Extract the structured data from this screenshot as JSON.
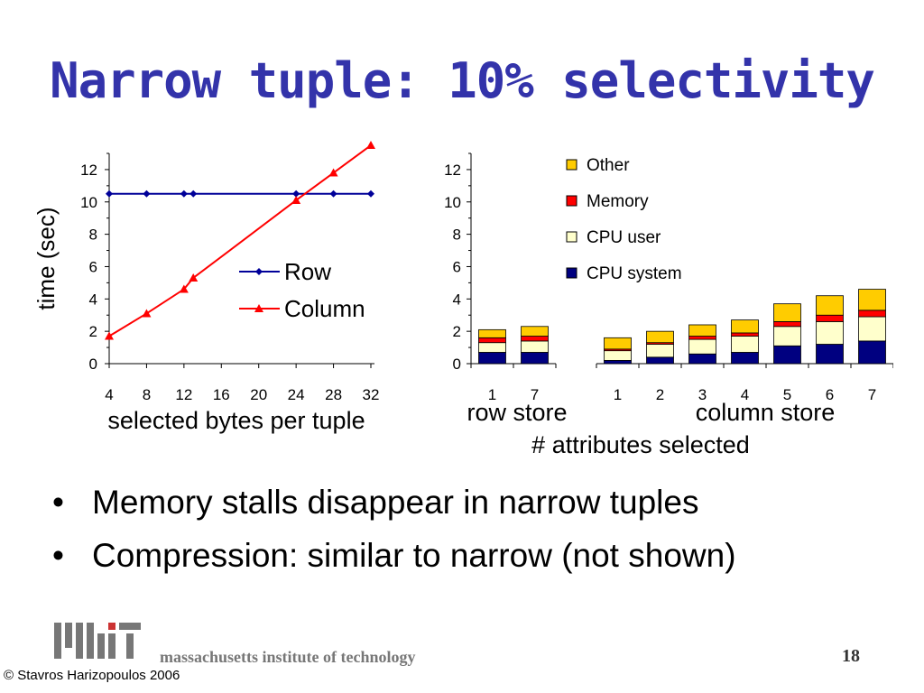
{
  "slide": {
    "title": "Narrow tuple: 10% selectivity",
    "bullets": [
      "Memory stalls disappear in narrow tuples",
      "Compression: similar to narrow (not shown)"
    ],
    "bullet_symbol": "•",
    "footer": {
      "institution": "massachusetts institute of technology",
      "page_number": "18",
      "copyright": "© Stavros Harizopoulos 2006",
      "logo_text": "MIT"
    }
  },
  "chart_data": [
    {
      "type": "line",
      "ylabel": "time (sec)",
      "xlabel": "selected bytes per tuple",
      "xlim": [
        4,
        32
      ],
      "ylim": [
        0,
        13
      ],
      "xticks": [
        4,
        8,
        12,
        16,
        20,
        24,
        28,
        32
      ],
      "yticks": [
        0,
        2,
        4,
        6,
        8,
        10,
        12
      ],
      "legend_position": "center-right",
      "series": [
        {
          "name": "Row",
          "color": "#000099",
          "marker": "diamond",
          "x": [
            4,
            8,
            12,
            13,
            24,
            28,
            32
          ],
          "y": [
            10.5,
            10.5,
            10.5,
            10.5,
            10.5,
            10.5,
            10.5
          ]
        },
        {
          "name": "Column",
          "color": "#ff0000",
          "marker": "triangle",
          "x": [
            4,
            8,
            12,
            13,
            24,
            28,
            32
          ],
          "y": [
            1.7,
            3.1,
            4.6,
            5.3,
            10.1,
            11.8,
            13.5
          ]
        }
      ]
    },
    {
      "type": "bar",
      "stacked": true,
      "xlabel": "# attributes selected",
      "ylim": [
        0,
        13
      ],
      "yticks": [
        0,
        2,
        4,
        6,
        8,
        10,
        12
      ],
      "legend_position": "top-right",
      "groups": [
        {
          "label": "row store",
          "categories": [
            "1",
            "7"
          ]
        },
        {
          "label": "column store",
          "categories": [
            "1",
            "2",
            "3",
            "4",
            "5",
            "6",
            "7"
          ]
        }
      ],
      "series": [
        {
          "name": "CPU system",
          "color": "#000080",
          "values": [
            0.7,
            0.7,
            0.2,
            0.4,
            0.6,
            0.7,
            1.1,
            1.2,
            1.4
          ]
        },
        {
          "name": "CPU user",
          "color": "#ffffcc",
          "values": [
            0.6,
            0.7,
            0.6,
            0.8,
            0.9,
            1.0,
            1.2,
            1.4,
            1.5
          ]
        },
        {
          "name": "Memory",
          "color": "#ff0000",
          "values": [
            0.3,
            0.3,
            0.1,
            0.1,
            0.2,
            0.2,
            0.3,
            0.4,
            0.4
          ]
        },
        {
          "name": "Other",
          "color": "#ffcc00",
          "values": [
            0.5,
            0.6,
            0.7,
            0.7,
            0.7,
            0.8,
            1.1,
            1.2,
            1.3
          ]
        }
      ]
    }
  ]
}
